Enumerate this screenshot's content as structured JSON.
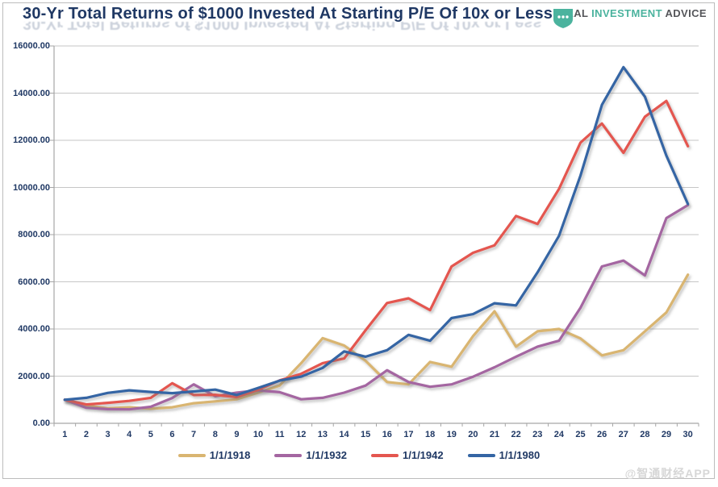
{
  "title": "30-Yr Total Returns of $1000 Invested At Starting P/E Of 10x or Less",
  "logo": {
    "word_real": "REAL",
    "word_investment": "INVESTMENT",
    "word_advice": "ADVICE",
    "teal": "#4BB39E",
    "dark_gray": "#55565A"
  },
  "watermark": "@智通财经APP",
  "colors": {
    "axis_text": "#1F3864",
    "gridline": "#C6C6C6",
    "axis_line": "#A6A6A6"
  },
  "chart_data": {
    "type": "line",
    "title": "30-Yr Total Returns of $1000 Invested At Starting P/E Of 10x or Less",
    "xlabel": "",
    "ylabel": "",
    "x": [
      1,
      2,
      3,
      4,
      5,
      6,
      7,
      8,
      9,
      10,
      11,
      12,
      13,
      14,
      15,
      16,
      17,
      18,
      19,
      20,
      21,
      22,
      23,
      24,
      25,
      26,
      27,
      28,
      29,
      30
    ],
    "ylim": [
      0,
      16000
    ],
    "ytick_step": 2000,
    "ytick_labels": [
      "0.00",
      "2000.00",
      "4000.00",
      "6000.00",
      "8000.00",
      "10000.00",
      "12000.00",
      "14000.00",
      "16000.00"
    ],
    "grid": true,
    "legend_position": "bottom",
    "series": [
      {
        "name": "1/1/1918",
        "color": "#D9B571",
        "values": [
          1000,
          750,
          640,
          680,
          620,
          680,
          850,
          930,
          1020,
          1300,
          1600,
          2550,
          3610,
          3300,
          2650,
          1750,
          1650,
          2600,
          2400,
          3700,
          4750,
          3250,
          3900,
          4000,
          3600,
          2880,
          3100,
          3900,
          4700,
          6300
        ]
      },
      {
        "name": "1/1/1932",
        "color": "#A466A1",
        "values": [
          1000,
          660,
          600,
          590,
          700,
          1075,
          1650,
          1150,
          1300,
          1400,
          1320,
          1020,
          1080,
          1300,
          1600,
          2250,
          1750,
          1550,
          1650,
          1975,
          2375,
          2825,
          3250,
          3500,
          4900,
          6650,
          6900,
          6270,
          8700,
          9250
        ]
      },
      {
        "name": "1/1/1942",
        "color": "#E4564F",
        "values": [
          1000,
          800,
          870,
          950,
          1080,
          1700,
          1200,
          1210,
          1110,
          1420,
          1820,
          2100,
          2550,
          2750,
          3950,
          5100,
          5300,
          4800,
          6650,
          7230,
          7550,
          8790,
          8450,
          9940,
          11900,
          12710,
          11470,
          13000,
          13670,
          11750
        ]
      },
      {
        "name": "1/1/1980",
        "color": "#3465A4",
        "values": [
          1000,
          1080,
          1290,
          1400,
          1330,
          1280,
          1350,
          1430,
          1200,
          1500,
          1810,
          1980,
          2350,
          3050,
          2825,
          3100,
          3750,
          3500,
          4460,
          4630,
          5090,
          5000,
          6400,
          7950,
          10500,
          13500,
          15100,
          13850,
          11350,
          9300
        ]
      }
    ]
  }
}
